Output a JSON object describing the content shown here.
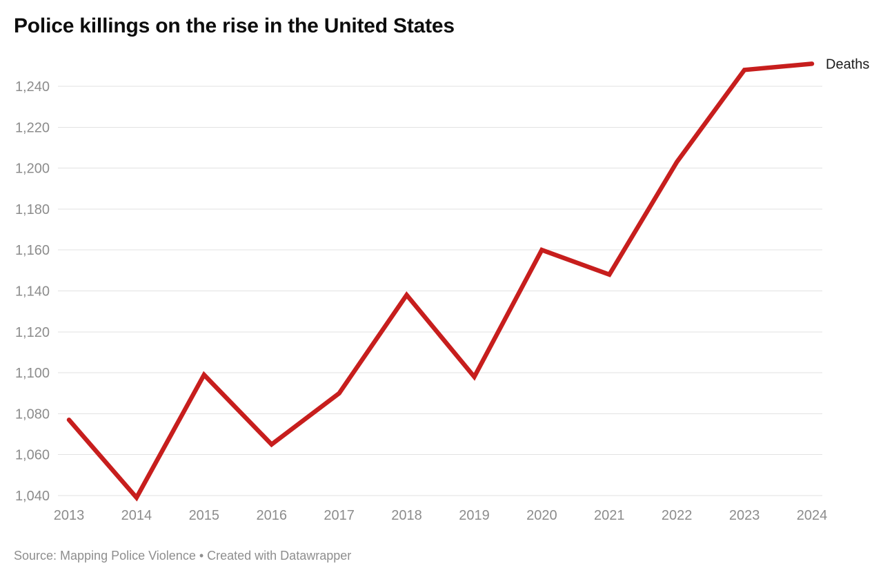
{
  "header": {
    "title": "Police killings on the rise in the United States"
  },
  "footer": {
    "text": "Source: Mapping Police Violence • Created with Datawrapper"
  },
  "chart_data": {
    "type": "line",
    "title": "Police killings on the rise in the United States",
    "x": [
      2013,
      2014,
      2015,
      2016,
      2017,
      2018,
      2019,
      2020,
      2021,
      2022,
      2023,
      2024
    ],
    "series": [
      {
        "name": "Deaths",
        "color": "#c71e1d",
        "values": [
          1077,
          1039,
          1099,
          1065,
          1090,
          1138,
          1098,
          1160,
          1148,
          1203,
          1248,
          1251
        ]
      }
    ],
    "xlabel": "",
    "ylabel": "",
    "y_ticks": [
      1040,
      1060,
      1080,
      1100,
      1120,
      1140,
      1160,
      1180,
      1200,
      1220,
      1240
    ],
    "y_tick_labels": [
      "1,040",
      "1,060",
      "1,080",
      "1,100",
      "1,120",
      "1,140",
      "1,160",
      "1,180",
      "1,200",
      "1,220",
      "1,240"
    ],
    "ylim": [
      1040,
      1240
    ],
    "grid": true,
    "legend_position": "line-end",
    "background": "#ffffff",
    "grid_color": "#e2e2e2",
    "tick_color": "#8c8c8c"
  }
}
